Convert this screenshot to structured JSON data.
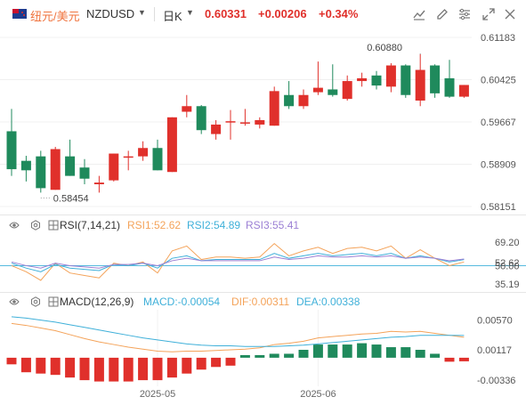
{
  "toolbar": {
    "pair_name": "纽元/美元",
    "symbol": "NZDUSD",
    "period": "日K",
    "price": "0.60331",
    "change": "+0.00206",
    "change_pct": "+0.34%",
    "flag_icon": "flag-icon",
    "icons": [
      "chart-type-icon",
      "edit-icon",
      "settings-icon",
      "fullscreen-icon",
      "close-icon"
    ]
  },
  "colors": {
    "up": "#e0302b",
    "down": "#1f8a5c",
    "accent": "#f0743f",
    "rsi1": "#f4a35a",
    "rsi2": "#3fb0d9",
    "rsi3": "#9b7fd4"
  },
  "main_chart": {
    "y_labels": [
      "0.61183",
      "0.60425",
      "0.59667",
      "0.58909",
      "0.58151"
    ],
    "high_label": "0.60880",
    "low_label": "0.58454"
  },
  "rsi": {
    "title": "RSI(7,14,21)",
    "rsi1": "RSI1:52.62",
    "rsi2": "RSI2:54.89",
    "rsi3": "RSI3:55.41",
    "y_labels": [
      "69.20",
      "52.62",
      "50.00",
      "35.19"
    ]
  },
  "macd": {
    "title": "MACD(12,26,9)",
    "macd": "MACD:-0.00054",
    "dif": "DIF:0.00311",
    "dea": "DEA:0.00338",
    "y_labels": [
      "0.00570",
      "0.00117",
      "-0.00336"
    ]
  },
  "x_labels": [
    "2025-05",
    "2025-06"
  ],
  "chart_data": {
    "type": "candlestick",
    "candles": [
      {
        "o": 0.595,
        "h": 0.599,
        "l": 0.587,
        "c": 0.5882
      },
      {
        "o": 0.5897,
        "h": 0.5906,
        "l": 0.586,
        "c": 0.588
      },
      {
        "o": 0.5905,
        "h": 0.5915,
        "l": 0.584,
        "c": 0.5848
      },
      {
        "o": 0.5845,
        "h": 0.5922,
        "l": 0.5845,
        "c": 0.5918
      },
      {
        "o": 0.5905,
        "h": 0.5935,
        "l": 0.587,
        "c": 0.587
      },
      {
        "o": 0.5885,
        "h": 0.59,
        "l": 0.5855,
        "c": 0.5865
      },
      {
        "o": 0.5855,
        "h": 0.587,
        "l": 0.584,
        "c": 0.5858
      },
      {
        "o": 0.5862,
        "h": 0.591,
        "l": 0.586,
        "c": 0.591
      },
      {
        "o": 0.5905,
        "h": 0.5915,
        "l": 0.588,
        "c": 0.5905
      },
      {
        "o": 0.5905,
        "h": 0.5932,
        "l": 0.5897,
        "c": 0.592
      },
      {
        "o": 0.592,
        "h": 0.5935,
        "l": 0.588,
        "c": 0.588
      },
      {
        "o": 0.5877,
        "h": 0.5975,
        "l": 0.5877,
        "c": 0.5975
      },
      {
        "o": 0.5985,
        "h": 0.6015,
        "l": 0.5975,
        "c": 0.5995
      },
      {
        "o": 0.5995,
        "h": 0.5997,
        "l": 0.5945,
        "c": 0.5952
      },
      {
        "o": 0.5945,
        "h": 0.597,
        "l": 0.5935,
        "c": 0.5962
      },
      {
        "o": 0.5968,
        "h": 0.5988,
        "l": 0.5935,
        "c": 0.5968
      },
      {
        "o": 0.5966,
        "h": 0.599,
        "l": 0.596,
        "c": 0.5966
      },
      {
        "o": 0.5962,
        "h": 0.5975,
        "l": 0.5955,
        "c": 0.597
      },
      {
        "o": 0.596,
        "h": 0.603,
        "l": 0.596,
        "c": 0.6022
      },
      {
        "o": 0.6015,
        "h": 0.604,
        "l": 0.599,
        "c": 0.5995
      },
      {
        "o": 0.5995,
        "h": 0.6025,
        "l": 0.599,
        "c": 0.6015
      },
      {
        "o": 0.602,
        "h": 0.6075,
        "l": 0.6015,
        "c": 0.6028
      },
      {
        "o": 0.6025,
        "h": 0.607,
        "l": 0.6012,
        "c": 0.6015
      },
      {
        "o": 0.6008,
        "h": 0.605,
        "l": 0.6005,
        "c": 0.604
      },
      {
        "o": 0.604,
        "h": 0.6055,
        "l": 0.603,
        "c": 0.6045
      },
      {
        "o": 0.605,
        "h": 0.6058,
        "l": 0.6025,
        "c": 0.6032
      },
      {
        "o": 0.603,
        "h": 0.6072,
        "l": 0.602,
        "c": 0.6068
      },
      {
        "o": 0.6068,
        "h": 0.607,
        "l": 0.601,
        "c": 0.6015
      },
      {
        "o": 0.6005,
        "h": 0.6088,
        "l": 0.5995,
        "c": 0.606
      },
      {
        "o": 0.6068,
        "h": 0.607,
        "l": 0.601,
        "c": 0.6018
      },
      {
        "o": 0.6045,
        "h": 0.6078,
        "l": 0.601,
        "c": 0.6012
      },
      {
        "o": 0.6012,
        "h": 0.6033,
        "l": 0.601,
        "c": 0.6033
      }
    ],
    "rsi1": [
      50,
      45,
      38,
      52,
      44,
      42,
      40,
      52,
      50,
      53,
      44,
      62,
      66,
      55,
      57,
      57,
      56,
      57,
      68,
      58,
      62,
      65,
      60,
      64,
      65,
      62,
      66,
      56,
      63,
      56,
      50,
      53
    ],
    "rsi2": [
      52,
      48,
      45,
      51,
      48,
      47,
      46,
      51,
      50,
      52,
      48,
      56,
      58,
      54,
      55,
      55,
      55,
      55,
      60,
      56,
      58,
      60,
      58,
      59,
      60,
      58,
      60,
      56,
      58,
      56,
      53,
      54.9
    ],
    "rsi3": [
      53,
      50,
      48,
      52,
      50,
      49,
      48,
      51,
      51,
      52,
      50,
      54,
      56,
      54,
      54,
      54,
      54,
      54,
      57,
      55,
      56,
      58,
      57,
      57,
      58,
      57,
      58,
      56,
      57,
      56,
      54,
      55.4
    ],
    "dif": [
      0.0052,
      0.0049,
      0.0045,
      0.0041,
      0.0035,
      0.0029,
      0.0024,
      0.002,
      0.0016,
      0.0013,
      0.001,
      0.0009,
      0.001,
      0.001,
      0.0011,
      0.0012,
      0.0013,
      0.0015,
      0.002,
      0.0022,
      0.0025,
      0.003,
      0.0032,
      0.0034,
      0.0036,
      0.0037,
      0.004,
      0.0039,
      0.004,
      0.0037,
      0.0034,
      0.0031
    ],
    "dea": [
      0.0062,
      0.006,
      0.0057,
      0.0054,
      0.005,
      0.0046,
      0.0042,
      0.0038,
      0.0034,
      0.003,
      0.0027,
      0.0024,
      0.0021,
      0.0019,
      0.0018,
      0.0018,
      0.0017,
      0.0017,
      0.0017,
      0.0018,
      0.0019,
      0.0021,
      0.0023,
      0.0025,
      0.0027,
      0.0029,
      0.0031,
      0.0032,
      0.0034,
      0.0034,
      0.0034,
      0.00338
    ],
    "hist": [
      -0.001,
      -0.0022,
      -0.0024,
      -0.0026,
      -0.003,
      -0.0034,
      -0.0036,
      -0.0036,
      -0.0036,
      -0.0034,
      -0.0034,
      -0.003,
      -0.0024,
      -0.0018,
      -0.0014,
      -0.0012,
      0.0004,
      0.0004,
      0.0006,
      0.0006,
      0.0012,
      0.002,
      0.002,
      0.002,
      0.0022,
      0.002,
      0.0016,
      0.0016,
      0.0012,
      0.0006,
      -0.0006,
      -0.00054
    ]
  }
}
